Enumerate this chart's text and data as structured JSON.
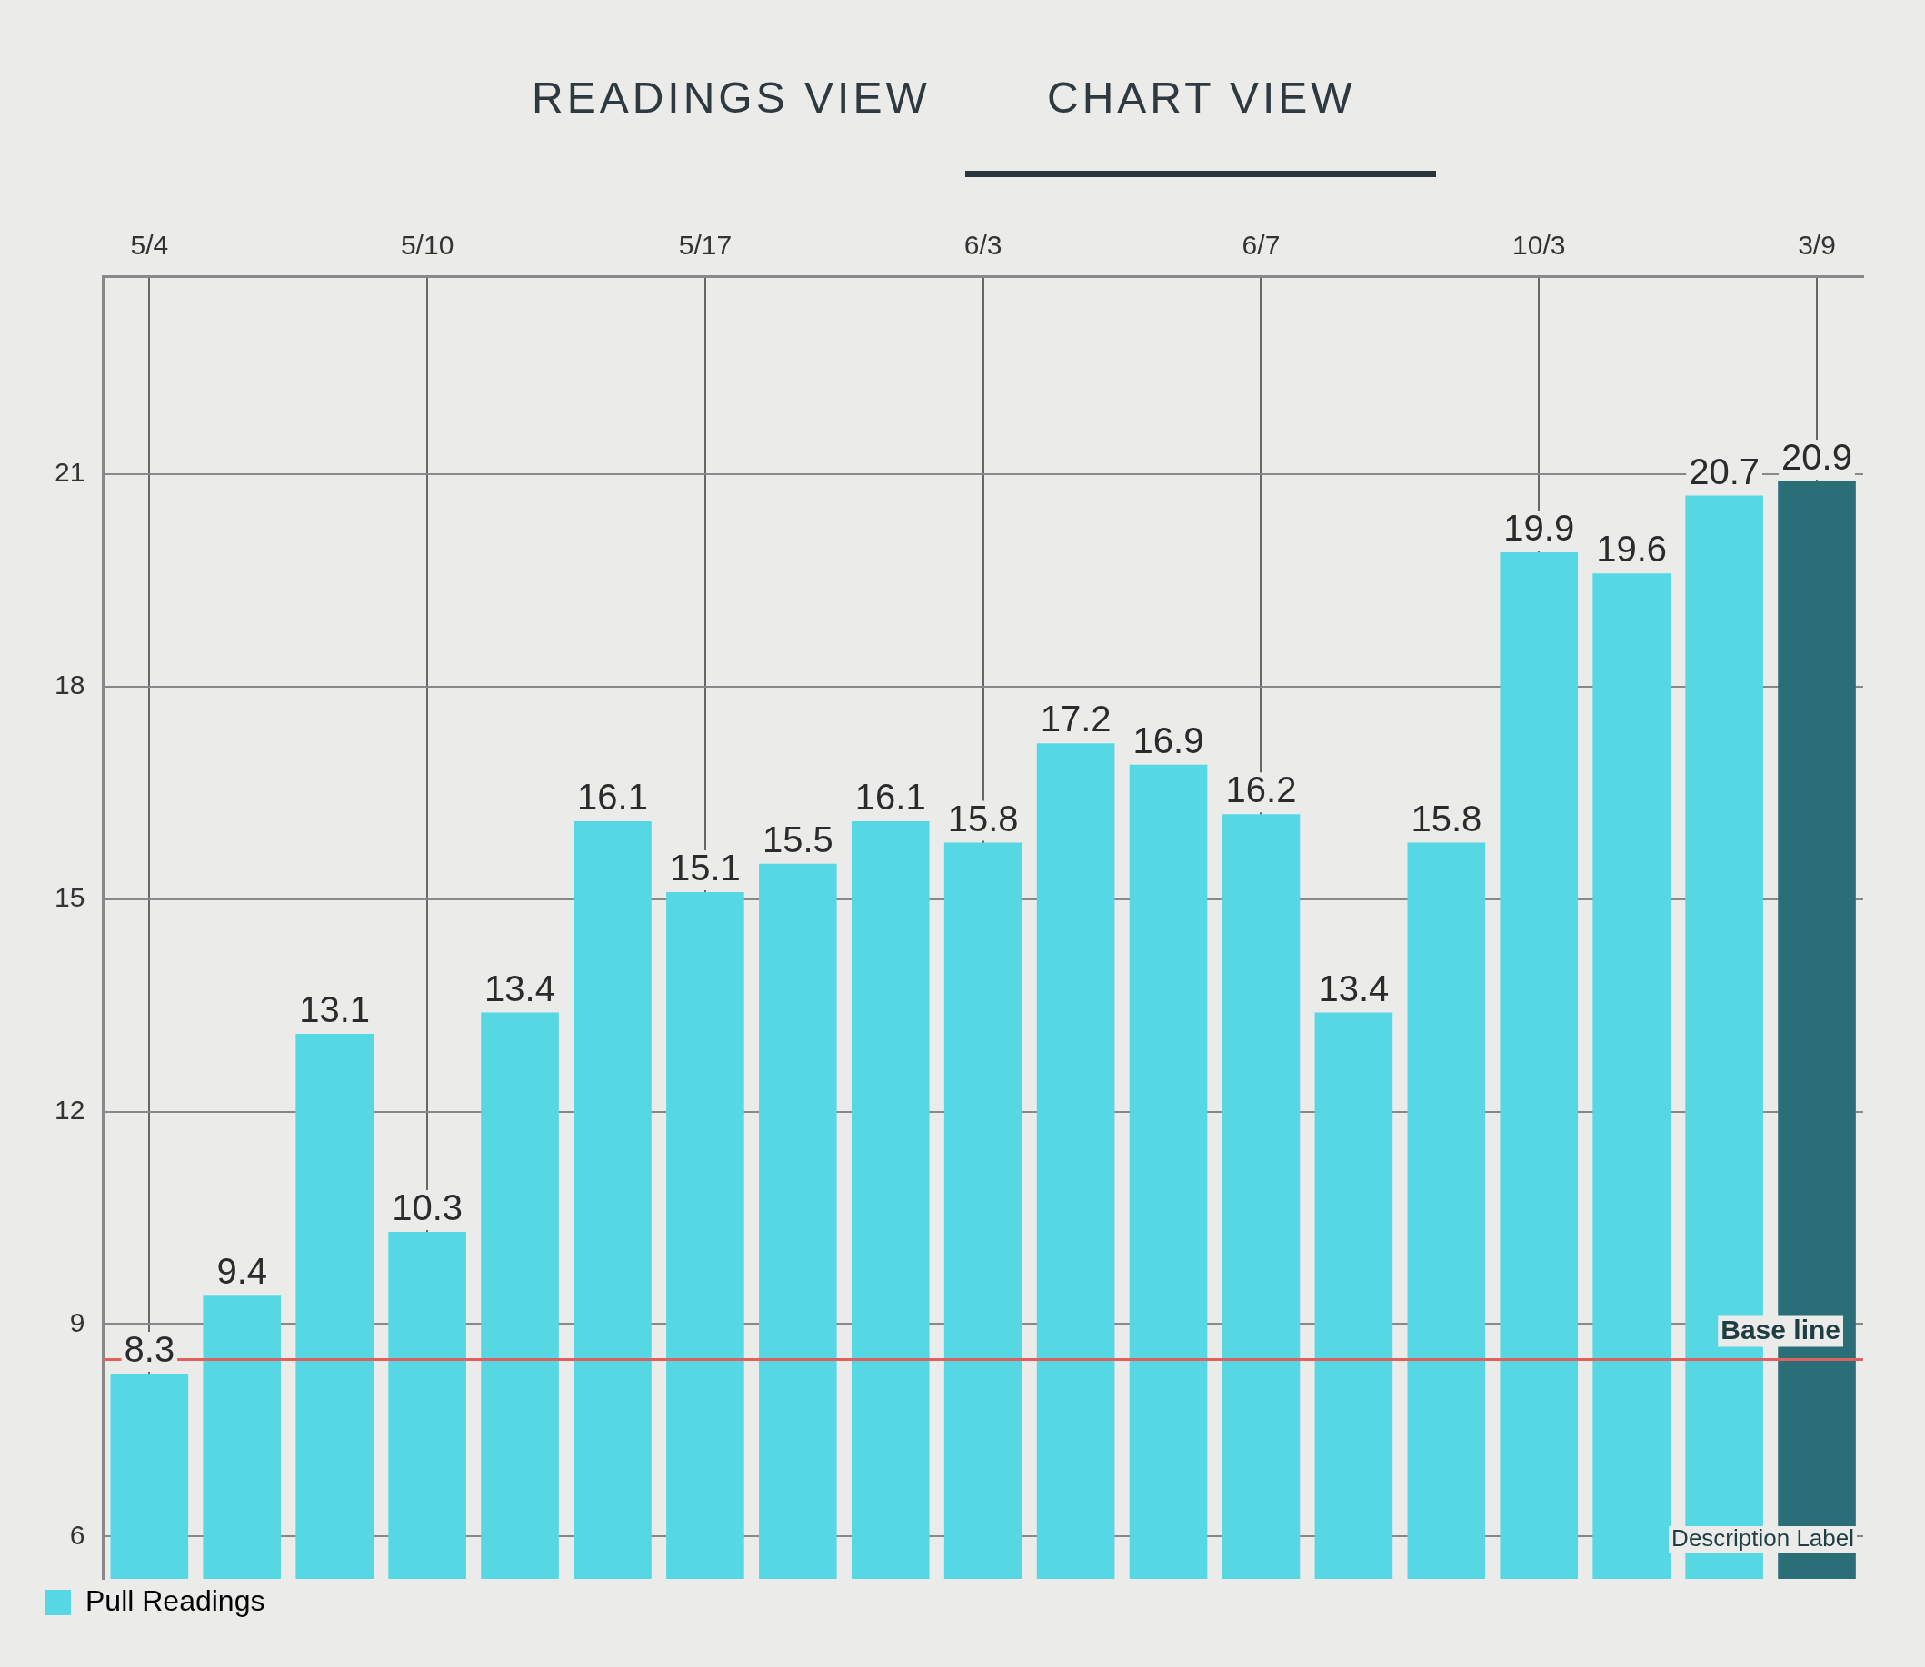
{
  "chart_data": {
    "type": "bar",
    "annotations": [
      "READINGS VIEW",
      "CHART VIEW",
      "Description Label"
    ],
    "categories": [
      "5/4",
      null,
      null,
      "5/10",
      null,
      null,
      "5/17",
      null,
      null,
      "6/3",
      null,
      null,
      "6/7",
      null,
      null,
      "10/3",
      null,
      null,
      "3/9"
    ],
    "series": [
      {
        "name": "Pull Readings",
        "color": "#56d8e4",
        "colors": [
          "#56d8e4",
          "#56d8e4",
          "#56d8e4",
          "#56d8e4",
          "#56d8e4",
          "#56d8e4",
          "#56d8e4",
          "#56d8e4",
          "#56d8e4",
          "#56d8e4",
          "#56d8e4",
          "#56d8e4",
          "#56d8e4",
          "#56d8e4",
          "#56d8e4",
          "#56d8e4",
          "#56d8e4",
          "#56d8e4",
          "#2a6f78"
        ],
        "values": [
          8.3,
          9.4,
          13.1,
          10.3,
          13.4,
          16.1,
          15.1,
          15.5,
          16.1,
          15.8,
          17.2,
          16.9,
          16.2,
          13.4,
          15.8,
          19.9,
          19.6,
          20.7,
          20.9
        ]
      }
    ],
    "ylim": [
      5.4,
      23.8
    ],
    "yticks": [
      6,
      9,
      12,
      15,
      18,
      21
    ],
    "ref_lines": [
      {
        "axis": "y",
        "value": 8.5,
        "label": "Base line",
        "color": "#e06060"
      }
    ],
    "data_labels": true,
    "grid": true,
    "legend": "bottom left"
  }
}
